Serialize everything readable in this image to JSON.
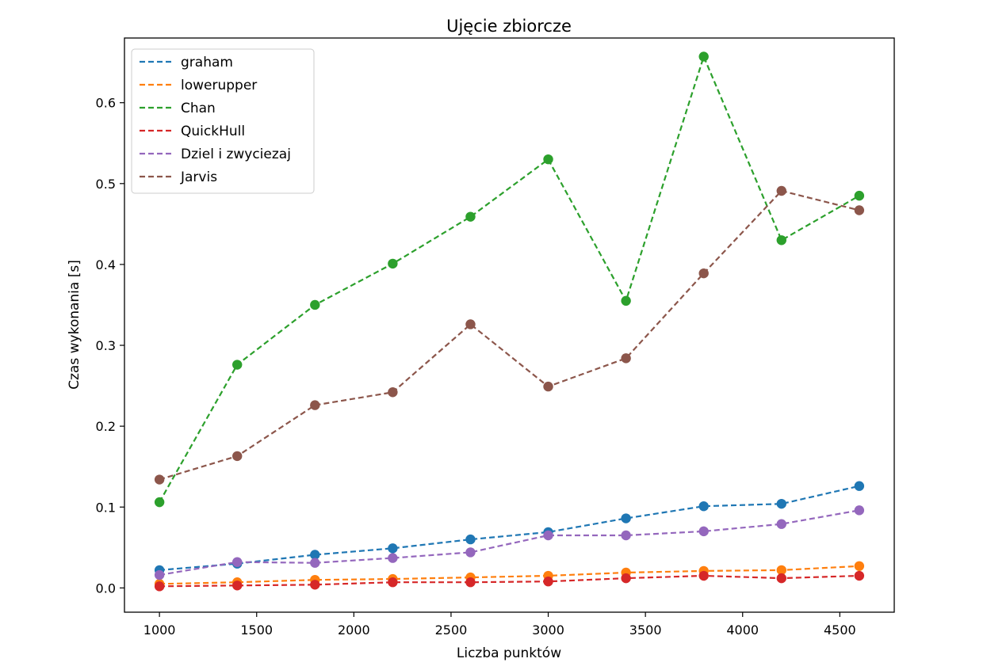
{
  "chart_data": {
    "type": "line",
    "title": "Ujęcie zbiorcze",
    "xlabel": "Liczba punktów",
    "ylabel": "Czas wykonania [s]",
    "xlim": [
      820,
      4780
    ],
    "ylim": [
      -0.03,
      0.68
    ],
    "x_ticks": [
      1000,
      1500,
      2000,
      2500,
      3000,
      3500,
      4000,
      4500
    ],
    "y_ticks": [
      0.0,
      0.1,
      0.2,
      0.3,
      0.4,
      0.5,
      0.6
    ],
    "y_tick_labels": [
      "0.0",
      "0.1",
      "0.2",
      "0.3",
      "0.4",
      "0.5",
      "0.6"
    ],
    "grid": false,
    "legend_position": "top-left",
    "x": [
      1000,
      1400,
      1800,
      2200,
      2600,
      3000,
      3400,
      3800,
      4200,
      4600
    ],
    "series": [
      {
        "name": "graham",
        "color": "#1f77b4",
        "values": [
          0.022,
          0.03,
          0.041,
          0.049,
          0.06,
          0.069,
          0.086,
          0.101,
          0.104,
          0.126
        ]
      },
      {
        "name": "lowerupper",
        "color": "#ff7f0e",
        "values": [
          0.005,
          0.007,
          0.01,
          0.011,
          0.013,
          0.015,
          0.019,
          0.021,
          0.022,
          0.027
        ]
      },
      {
        "name": "Chan",
        "color": "#2ca02c",
        "values": [
          0.106,
          0.276,
          0.35,
          0.401,
          0.459,
          0.53,
          0.355,
          0.657,
          0.43,
          0.485
        ]
      },
      {
        "name": "QuickHull",
        "color": "#d62728",
        "values": [
          0.002,
          0.003,
          0.004,
          0.007,
          0.007,
          0.008,
          0.012,
          0.015,
          0.012,
          0.015
        ]
      },
      {
        "name": "Dziel i zwyciezaj",
        "color": "#9467bd",
        "values": [
          0.016,
          0.032,
          0.031,
          0.037,
          0.044,
          0.065,
          0.065,
          0.07,
          0.079,
          0.096
        ]
      },
      {
        "name": "Jarvis",
        "color": "#8c564b",
        "values": [
          0.134,
          0.163,
          0.226,
          0.242,
          0.326,
          0.249,
          0.284,
          0.389,
          0.491,
          0.467
        ]
      }
    ]
  }
}
